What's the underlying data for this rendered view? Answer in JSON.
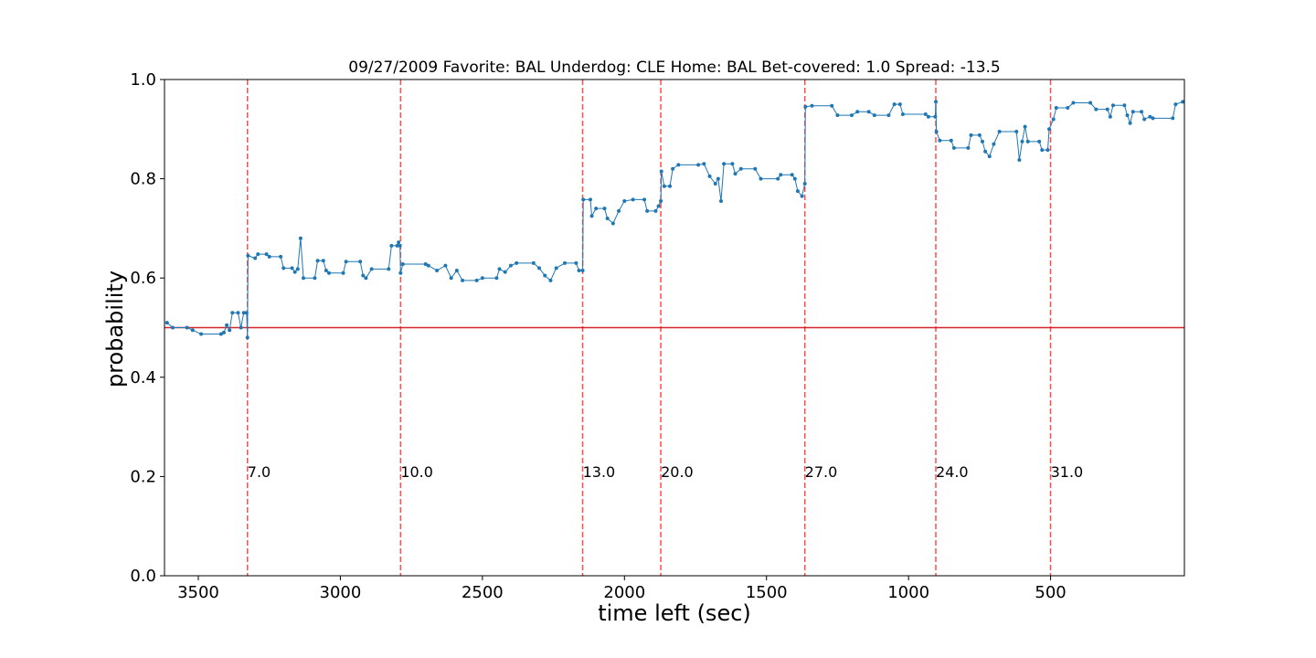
{
  "chart_data": {
    "type": "line",
    "title": "09/27/2009 Favorite: BAL Underdog: CLE Home: BAL Bet-covered: 1.0 Spread: -13.5",
    "xlabel": "time left (sec)",
    "ylabel": "probability",
    "xlim": [
      3619,
      29
    ],
    "xticks": [
      3500,
      3000,
      2500,
      2000,
      1500,
      1000,
      500
    ],
    "ylim": [
      0,
      1
    ],
    "yticks": [
      {
        "value": 0,
        "label": "0.0"
      },
      {
        "value": 0.2,
        "label": "0.2"
      },
      {
        "value": 0.4,
        "label": "0.4"
      },
      {
        "value": 0.6,
        "label": "0.6"
      },
      {
        "value": 0.8,
        "label": "0.8"
      },
      {
        "value": 1,
        "label": "1.0"
      }
    ],
    "x": [
      3610,
      3590,
      3540,
      3520,
      3490,
      3420,
      3410,
      3400,
      3390,
      3380,
      3360,
      3350,
      3340,
      3330,
      3327,
      3325,
      3300,
      3290,
      3260,
      3250,
      3210,
      3200,
      3170,
      3160,
      3150,
      3140,
      3130,
      3090,
      3080,
      3060,
      3050,
      3040,
      2990,
      2980,
      2930,
      2920,
      2910,
      2890,
      2830,
      2820,
      2800,
      2795,
      2790,
      2788,
      2780,
      2700,
      2690,
      2660,
      2630,
      2610,
      2590,
      2570,
      2520,
      2500,
      2450,
      2440,
      2420,
      2400,
      2380,
      2320,
      2300,
      2280,
      2260,
      2240,
      2210,
      2170,
      2160,
      2147,
      2145,
      2120,
      2115,
      2100,
      2070,
      2060,
      2040,
      2020,
      2000,
      1970,
      1930,
      1920,
      1890,
      1880,
      1872,
      1870,
      1860,
      1840,
      1830,
      1810,
      1740,
      1720,
      1700,
      1680,
      1670,
      1660,
      1650,
      1620,
      1610,
      1590,
      1540,
      1520,
      1460,
      1450,
      1410,
      1400,
      1390,
      1375,
      1365,
      1363,
      1340,
      1270,
      1250,
      1200,
      1180,
      1140,
      1120,
      1070,
      1050,
      1030,
      1020,
      940,
      930,
      906,
      904,
      902,
      890,
      850,
      840,
      790,
      780,
      750,
      740,
      730,
      715,
      700,
      680,
      620,
      610,
      600,
      590,
      580,
      540,
      530,
      510,
      505,
      490,
      480,
      440,
      420,
      360,
      340,
      300,
      290,
      280,
      240,
      230,
      220,
      210,
      180,
      170,
      150,
      140,
      70,
      60,
      35
    ],
    "series": [
      {
        "color": "#1f77b4",
        "values": [
          0.51,
          0.5,
          0.5,
          0.495,
          0.487,
          0.487,
          0.49,
          0.505,
          0.495,
          0.53,
          0.53,
          0.5,
          0.53,
          0.53,
          0.48,
          0.645,
          0.64,
          0.648,
          0.648,
          0.643,
          0.643,
          0.62,
          0.62,
          0.612,
          0.618,
          0.68,
          0.6,
          0.6,
          0.635,
          0.635,
          0.615,
          0.61,
          0.61,
          0.633,
          0.633,
          0.605,
          0.6,
          0.618,
          0.618,
          0.665,
          0.665,
          0.672,
          0.665,
          0.61,
          0.628,
          0.628,
          0.625,
          0.615,
          0.625,
          0.6,
          0.615,
          0.595,
          0.595,
          0.6,
          0.6,
          0.618,
          0.612,
          0.625,
          0.63,
          0.63,
          0.62,
          0.605,
          0.595,
          0.62,
          0.63,
          0.63,
          0.615,
          0.615,
          0.758,
          0.758,
          0.725,
          0.74,
          0.74,
          0.72,
          0.71,
          0.735,
          0.755,
          0.758,
          0.758,
          0.735,
          0.735,
          0.745,
          0.755,
          0.815,
          0.785,
          0.785,
          0.82,
          0.828,
          0.828,
          0.83,
          0.805,
          0.79,
          0.8,
          0.755,
          0.83,
          0.83,
          0.81,
          0.82,
          0.82,
          0.8,
          0.8,
          0.808,
          0.808,
          0.8,
          0.775,
          0.765,
          0.79,
          0.945,
          0.947,
          0.947,
          0.928,
          0.928,
          0.935,
          0.935,
          0.928,
          0.928,
          0.95,
          0.95,
          0.93,
          0.93,
          0.925,
          0.925,
          0.955,
          0.895,
          0.877,
          0.877,
          0.862,
          0.862,
          0.888,
          0.888,
          0.875,
          0.855,
          0.845,
          0.87,
          0.895,
          0.895,
          0.838,
          0.875,
          0.905,
          0.875,
          0.875,
          0.858,
          0.858,
          0.9,
          0.92,
          0.943,
          0.943,
          0.953,
          0.953,
          0.94,
          0.94,
          0.925,
          0.948,
          0.948,
          0.928,
          0.912,
          0.935,
          0.935,
          0.92,
          0.925,
          0.922,
          0.922,
          0.95,
          0.955
        ]
      }
    ],
    "hline": {
      "y": 0.5,
      "color": "#d62728"
    },
    "vline_color": "#ff0000",
    "annotation_y": 0.21,
    "vlines": [
      {
        "x": 3327,
        "label": "7.0"
      },
      {
        "x": 2788,
        "label": "10.0"
      },
      {
        "x": 2147,
        "label": "13.0"
      },
      {
        "x": 1872,
        "label": "20.0"
      },
      {
        "x": 1365,
        "label": "27.0"
      },
      {
        "x": 904,
        "label": "24.0"
      },
      {
        "x": 500,
        "label": "31.0"
      }
    ]
  }
}
